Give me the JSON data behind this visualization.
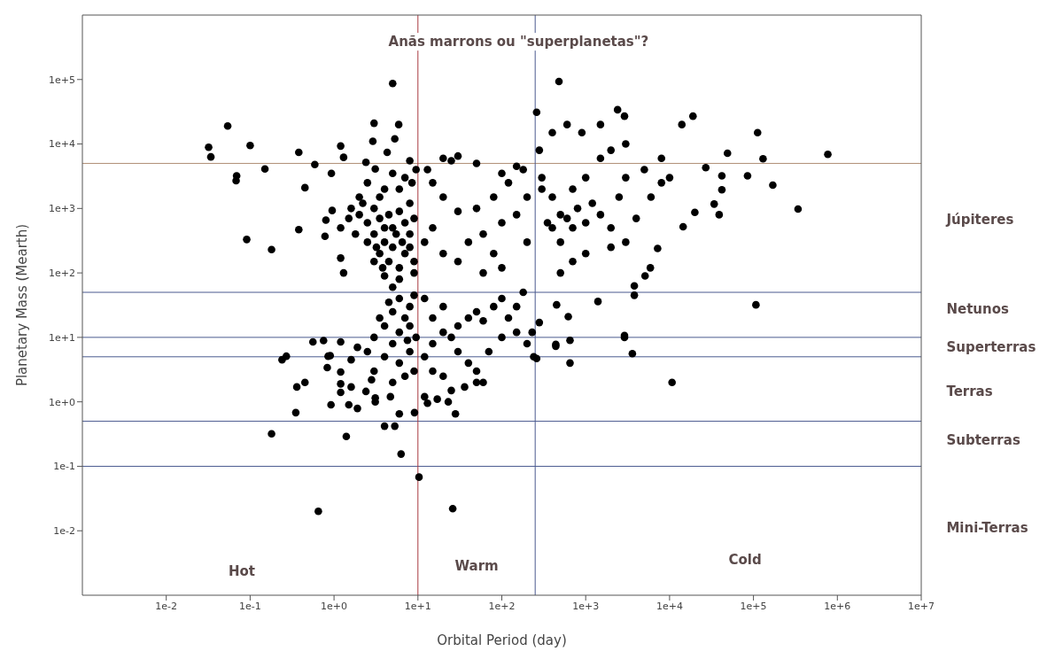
{
  "chart_data": {
    "type": "scatter",
    "xlabel": "Orbital Period (day)",
    "ylabel": "Planetary Mass (Mearth)",
    "log": "xy",
    "marker": "circle",
    "xlim": [
      0.001,
      10000000
    ],
    "ylim": [
      0.001,
      1000000
    ],
    "xticks": [
      {
        "value": 0.01,
        "label": "1e-2"
      },
      {
        "value": 0.1,
        "label": "1e-1"
      },
      {
        "value": 1,
        "label": "1e+0"
      },
      {
        "value": 10,
        "label": "1e+1"
      },
      {
        "value": 100,
        "label": "1e+2"
      },
      {
        "value": 1000,
        "label": "1e+3"
      },
      {
        "value": 10000,
        "label": "1e+4"
      },
      {
        "value": 100000,
        "label": "1e+5"
      },
      {
        "value": 1000000,
        "label": "1e+6"
      },
      {
        "value": 10000000,
        "label": "1e+7"
      }
    ],
    "yticks": [
      {
        "value": 0.01,
        "label": "1e-2"
      },
      {
        "value": 0.1,
        "label": "1e-1"
      },
      {
        "value": 1,
        "label": "1e+0"
      },
      {
        "value": 10,
        "label": "1e+1"
      },
      {
        "value": 100,
        "label": "1e+2"
      },
      {
        "value": 1000,
        "label": "1e+3"
      },
      {
        "value": 10000,
        "label": "1e+4"
      },
      {
        "value": 100000,
        "label": "1e+5"
      }
    ],
    "series": [
      {
        "color": "#000000",
        "x": [
          0.032,
          0.034,
          0.054,
          0.1,
          0.069,
          0.068,
          0.15,
          0.091,
          0.18,
          0.38,
          0.45,
          0.38,
          0.59,
          0.93,
          1.2,
          1.3,
          0.8,
          0.95,
          1.2,
          1.3,
          0.78,
          5,
          3,
          5.9,
          2.9,
          5.3,
          4.3,
          2.4,
          3.1,
          2,
          2.5,
          3,
          4,
          5,
          3.5,
          4.5,
          6,
          5,
          3,
          2,
          6,
          7,
          8,
          9,
          8,
          7,
          6,
          9,
          4,
          5,
          1.5,
          1.2,
          2.5,
          3.5,
          6,
          7,
          8,
          9,
          2.5,
          3,
          3.5,
          4,
          5,
          1.8,
          1.6,
          2.2,
          4,
          4.5,
          5.5,
          6.5,
          3.2,
          3.8,
          8.5,
          9.5,
          8,
          0.56,
          0.75,
          1.2,
          0.24,
          0.27,
          0.85,
          0.9,
          0.83,
          1.2,
          1.6,
          1.9,
          0.36,
          0.45,
          1.2,
          1.6,
          1.2,
          2.4,
          3.1,
          4.7,
          0.92,
          1.5,
          1.9,
          0.35,
          6,
          9.1,
          3.1,
          0.18,
          1.4,
          4,
          5.3,
          6.3,
          10.3,
          0.65,
          3,
          4,
          5,
          6,
          7,
          8,
          9,
          4,
          5,
          6,
          3,
          2.5,
          8,
          9,
          7,
          5,
          6,
          3.5,
          4.5,
          8,
          9.5,
          2.8,
          7.5,
          12,
          15,
          20,
          25,
          30,
          40,
          50,
          60,
          80,
          100,
          120,
          150,
          200,
          15,
          20,
          12,
          30,
          40,
          50,
          70,
          100,
          150,
          180,
          15,
          20,
          25,
          12,
          60,
          17,
          13,
          28,
          36,
          50,
          23,
          26,
          240,
          230,
          12,
          15,
          20,
          30,
          40,
          60,
          80,
          100,
          150,
          200,
          120,
          80,
          50,
          30,
          20,
          15,
          25,
          30,
          20,
          50,
          100,
          180,
          13,
          60,
          100,
          200,
          150,
          300,
          400,
          500,
          600,
          700,
          800,
          1000,
          1200,
          1500,
          2000,
          2500,
          3000,
          500,
          400,
          700,
          1000,
          1500,
          2000,
          3000,
          5000,
          8000,
          6000,
          4000,
          3000,
          2000,
          1000,
          700,
          500,
          300,
          350,
          900,
          1500,
          600,
          400,
          8000,
          10000,
          280,
          480,
          260,
          2400,
          2900,
          19000,
          14000,
          112000,
          130000,
          770000,
          49000,
          27000,
          42000,
          85000,
          170000,
          42000,
          34000,
          39000,
          20000,
          14500,
          340000,
          107000,
          7200,
          5900,
          5100,
          3800,
          3800,
          1400,
          620,
          450,
          2900,
          650,
          440,
          2900,
          3600,
          650,
          440,
          10700,
          260,
          280
        ],
        "values": [
          8900,
          6300,
          19000,
          9500,
          3200,
          2700,
          4100,
          330,
          230,
          7400,
          2100,
          470,
          4800,
          3500,
          9300,
          6200,
          660,
          930,
          170,
          100,
          370,
          87000,
          21000,
          20000,
          11000,
          12000,
          7400,
          5200,
          4100,
          800,
          600,
          400,
          300,
          250,
          200,
          150,
          120,
          500,
          1000,
          1500,
          2000,
          3000,
          1200,
          700,
          400,
          200,
          80,
          100,
          90,
          60,
          700,
          500,
          2500,
          1500,
          900,
          600,
          250,
          150,
          300,
          150,
          700,
          2000,
          3500,
          400,
          1000,
          1200,
          500,
          800,
          400,
          300,
          250,
          120,
          2500,
          4000,
          5500,
          8.5,
          8.9,
          8.5,
          4.5,
          5.1,
          5.1,
          5.2,
          3.4,
          2.9,
          4.5,
          7,
          1.7,
          2,
          1.9,
          1.7,
          1.4,
          1.45,
          1.15,
          1.2,
          0.9,
          0.9,
          0.79,
          0.68,
          0.65,
          0.68,
          1,
          0.32,
          0.29,
          0.42,
          0.42,
          0.155,
          0.068,
          0.02,
          3,
          5,
          8,
          12,
          20,
          30,
          45,
          15,
          25,
          40,
          10,
          6,
          6,
          3,
          2.5,
          2,
          4,
          20,
          35,
          15,
          10,
          2.2,
          9,
          5,
          8,
          12,
          10,
          15,
          20,
          25,
          18,
          30,
          40,
          20,
          12,
          8,
          20,
          30,
          40,
          6,
          4,
          3,
          6,
          10,
          30,
          50,
          3,
          2.5,
          1.5,
          1.2,
          2,
          1.1,
          0.95,
          0.65,
          1.7,
          2,
          1,
          0.022,
          5,
          12,
          300,
          500,
          200,
          150,
          300,
          400,
          200,
          600,
          800,
          1500,
          2500,
          1500,
          1000,
          900,
          1500,
          2500,
          5500,
          6500,
          6000,
          5000,
          3500,
          4000,
          4000,
          100,
          120,
          300,
          4500,
          3000,
          1500,
          800,
          700,
          500,
          1000,
          600,
          1200,
          800,
          500,
          1500,
          3000,
          300,
          500,
          2000,
          3000,
          6000,
          8000,
          10000,
          4000,
          2500,
          1500,
          700,
          300,
          250,
          200,
          150,
          100,
          2000,
          600,
          15000,
          20000,
          20000,
          15000,
          6000,
          3000,
          8000,
          93000,
          31000,
          34000,
          27000,
          27000,
          20000,
          15000,
          5900,
          6900,
          7200,
          4300,
          3200,
          3200,
          2300,
          1950,
          1170,
          800,
          870,
          520,
          980,
          32,
          240,
          120,
          90,
          63,
          45,
          36,
          21,
          32,
          10,
          9,
          7.3,
          10.7,
          5.6,
          4,
          7.8,
          2,
          4.7,
          17
        ]
      }
    ],
    "ref_lines": [
      {
        "axis": "y",
        "value": 5000,
        "color": "#b08f77"
      },
      {
        "axis": "y",
        "value": 50,
        "color": "#4a5a8f"
      },
      {
        "axis": "y",
        "value": 10,
        "color": "#4a5a8f"
      },
      {
        "axis": "y",
        "value": 5,
        "color": "#4a5a8f"
      },
      {
        "axis": "y",
        "value": 0.5,
        "color": "#4a5a8f"
      },
      {
        "axis": "y",
        "value": 0.1,
        "color": "#4a5a8f"
      },
      {
        "axis": "x",
        "value": 10,
        "color": "#a83a40"
      },
      {
        "axis": "x",
        "value": 250,
        "color": "#4a5a8f"
      }
    ],
    "annotations": [
      "Anãs marrons ou \"superplanetas\"?",
      "Hot",
      "Warm",
      "Cold",
      "Júpiteres",
      "Netunos",
      "Superterras",
      "Terras",
      "Subterras",
      "Mini-Terras"
    ]
  }
}
